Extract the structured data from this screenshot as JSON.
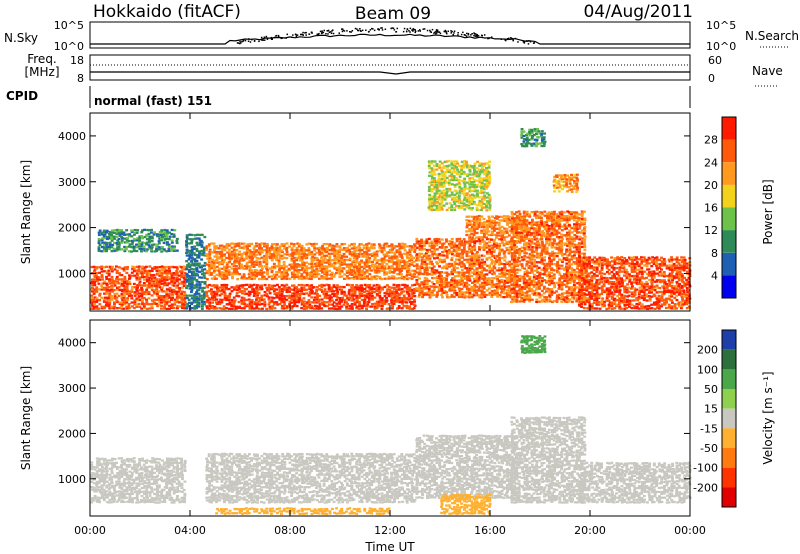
{
  "header": {
    "site": "Hokkaido (fitACF)",
    "beam": "Beam 09",
    "date": "04/Aug/2011"
  },
  "status_panels": {
    "nsky_label": "N.Sky",
    "nsky_ticks": [
      "10^5",
      "10^0"
    ],
    "nsearch_label": "N.Search",
    "nsearch_ticks": [
      "10^5",
      "10^0"
    ],
    "freq_label_1": "Freq.",
    "freq_label_2": "[MHz]",
    "freq_ticks": [
      "18",
      "8"
    ],
    "nave_label": "Nave",
    "nave_ticks": [
      "60",
      "0"
    ],
    "cpid_label": "CPID",
    "cpid_value": "normal (fast) 151"
  },
  "colors": {
    "power_scale": [
      "#0000ee",
      "#1f5fb4",
      "#2e8b57",
      "#6cc24a",
      "#f2d21b",
      "#ff9a1f",
      "#ff5a0a",
      "#ff1a00"
    ],
    "velocity_scale": [
      "#1f3fa8",
      "#2e6f3e",
      "#4aa84a",
      "#8fd14f",
      "#c8c8c0",
      "#ffb030",
      "#ff7a10",
      "#ff3300",
      "#e00000"
    ]
  },
  "chart_data": [
    {
      "type": "heatmap",
      "name": "power",
      "ylabel": "Slant Range [km]",
      "ylim": [
        180,
        4500
      ],
      "yticks": [
        "1000",
        "2000",
        "3000",
        "4000"
      ],
      "xticks": [
        "00:00",
        "04:00",
        "08:00",
        "12:00",
        "16:00",
        "20:00",
        "00:00"
      ],
      "xlim_hours": [
        0,
        24
      ],
      "colorbar": {
        "label": "Power [dB]",
        "range": [
          0,
          32
        ],
        "ticks": [
          "4",
          "8",
          "12",
          "16",
          "20",
          "24",
          "28"
        ]
      },
      "regions": [
        {
          "t": [
            0.0,
            3.8
          ],
          "r": [
            250,
            1200
          ],
          "v": 27
        },
        {
          "t": [
            0.3,
            3.5
          ],
          "r": [
            1500,
            2000
          ],
          "v": 10
        },
        {
          "t": [
            3.8,
            4.6
          ],
          "r": [
            250,
            1900
          ],
          "v": 8
        },
        {
          "t": [
            4.6,
            13.0
          ],
          "r": [
            250,
            800
          ],
          "v": 28
        },
        {
          "t": [
            4.6,
            13.0
          ],
          "r": [
            900,
            1700
          ],
          "v": 24
        },
        {
          "t": [
            13.0,
            17.0
          ],
          "r": [
            500,
            1800
          ],
          "v": 25
        },
        {
          "t": [
            15.0,
            17.5
          ],
          "r": [
            1800,
            2300
          ],
          "v": 24
        },
        {
          "t": [
            16.8,
            19.8
          ],
          "r": [
            400,
            2400
          ],
          "v": 25
        },
        {
          "t": [
            19.5,
            24.0
          ],
          "r": [
            250,
            1400
          ],
          "v": 27
        },
        {
          "t": [
            13.5,
            16.0
          ],
          "r": [
            2400,
            3500
          ],
          "v": 17
        },
        {
          "t": [
            17.2,
            18.2
          ],
          "r": [
            3800,
            4200
          ],
          "v": 11
        },
        {
          "t": [
            18.5,
            19.5
          ],
          "r": [
            2800,
            3200
          ],
          "v": 22
        }
      ]
    },
    {
      "type": "heatmap",
      "name": "velocity",
      "ylabel": "Slant Range [km]",
      "xlabel": "Time UT",
      "ylim": [
        180,
        4500
      ],
      "yticks": [
        "1000",
        "2000",
        "3000",
        "4000"
      ],
      "xticks": [
        "00:00",
        "04:00",
        "08:00",
        "12:00",
        "16:00",
        "20:00",
        "00:00"
      ],
      "xlim_hours": [
        0,
        24
      ],
      "colorbar": {
        "label": "Velocity [m s⁻¹]",
        "levels": [
          "200",
          "100",
          "50",
          "15",
          "-15",
          "-50",
          "-100",
          "-200"
        ]
      },
      "regions": [
        {
          "t": [
            0.0,
            3.8
          ],
          "r": [
            500,
            1500
          ],
          "v": 0
        },
        {
          "t": [
            4.6,
            13.0
          ],
          "r": [
            500,
            1600
          ],
          "v": 0
        },
        {
          "t": [
            13.0,
            17.0
          ],
          "r": [
            600,
            2000
          ],
          "v": 5
        },
        {
          "t": [
            16.8,
            19.8
          ],
          "r": [
            500,
            2400
          ],
          "v": 0
        },
        {
          "t": [
            19.5,
            24.0
          ],
          "r": [
            500,
            1400
          ],
          "v": 0
        },
        {
          "t": [
            14.0,
            16.0
          ],
          "r": [
            250,
            700
          ],
          "v": -40
        },
        {
          "t": [
            5.0,
            12.0
          ],
          "r": [
            250,
            400
          ],
          "v": -30
        },
        {
          "t": [
            17.2,
            18.2
          ],
          "r": [
            3800,
            4200
          ],
          "v": 60
        }
      ]
    }
  ]
}
